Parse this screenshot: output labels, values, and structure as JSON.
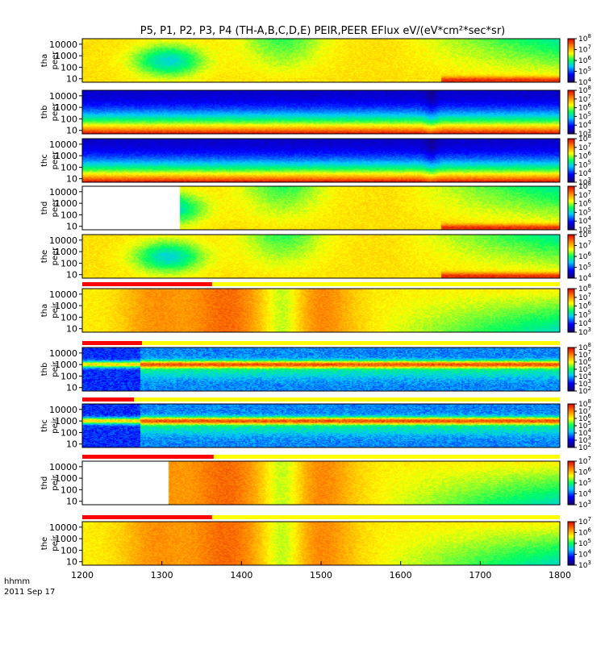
{
  "chart_data": {
    "type": "heatmap",
    "title": "P5, P1, P2, P3, P4 (TH-A,B,C,D,E) PEIR,PEER EFlux eV/(eV*cm²*sec*sr)",
    "x_axis": {
      "label": "hhmm",
      "date": "2011 Sep 17",
      "range": [
        1200,
        1800
      ],
      "ticks": [
        "1200",
        "1300",
        "1400",
        "1500",
        "1600",
        "1700",
        "1800"
      ]
    },
    "y_scale": "log",
    "y_ticks": [
      "10",
      "100",
      "1000",
      "10000"
    ],
    "panels": [
      {
        "probe": "tha",
        "species": "peer",
        "y_range": [
          5,
          30000
        ],
        "cbar": [
          4,
          8
        ],
        "data_start": 1200,
        "mode_bar": false
      },
      {
        "probe": "thb",
        "species": "peer",
        "y_range": [
          5,
          30000
        ],
        "cbar": [
          3,
          8
        ],
        "data_start": 1200,
        "mode_bar": false
      },
      {
        "probe": "thc",
        "species": "peer",
        "y_range": [
          5,
          30000
        ],
        "cbar": [
          3,
          8
        ],
        "data_start": 1200,
        "mode_bar": false
      },
      {
        "probe": "thd",
        "species": "peer",
        "y_range": [
          5,
          30000
        ],
        "cbar": [
          3,
          8
        ],
        "data_start": 1322,
        "mode_bar": false
      },
      {
        "probe": "the",
        "species": "peer",
        "y_range": [
          5,
          30000
        ],
        "cbar": [
          4,
          8
        ],
        "data_start": 1200,
        "mode_bar": false
      },
      {
        "probe": "tha",
        "species": "peir",
        "y_range": [
          5,
          30000
        ],
        "cbar": [
          3,
          8
        ],
        "data_start": 1200,
        "mode_bar": true,
        "bar_red_end": 1363
      },
      {
        "probe": "thb",
        "species": "peir",
        "y_range": [
          5,
          30000
        ],
        "cbar": [
          2,
          8
        ],
        "data_start": 1200,
        "mode_bar": true,
        "bar_red_end": 1275
      },
      {
        "probe": "thc",
        "species": "peir",
        "y_range": [
          5,
          30000
        ],
        "cbar": [
          2,
          8
        ],
        "data_start": 1200,
        "mode_bar": true,
        "bar_red_end": 1265
      },
      {
        "probe": "thd",
        "species": "peir",
        "y_range": [
          5,
          30000
        ],
        "cbar": [
          3,
          7
        ],
        "data_start": 1308,
        "mode_bar": true,
        "bar_red_end": 1365
      },
      {
        "probe": "the",
        "species": "peir",
        "y_range": [
          5,
          30000
        ],
        "cbar": [
          3,
          7
        ],
        "data_start": 1200,
        "mode_bar": true,
        "bar_red_end": 1363
      }
    ]
  }
}
